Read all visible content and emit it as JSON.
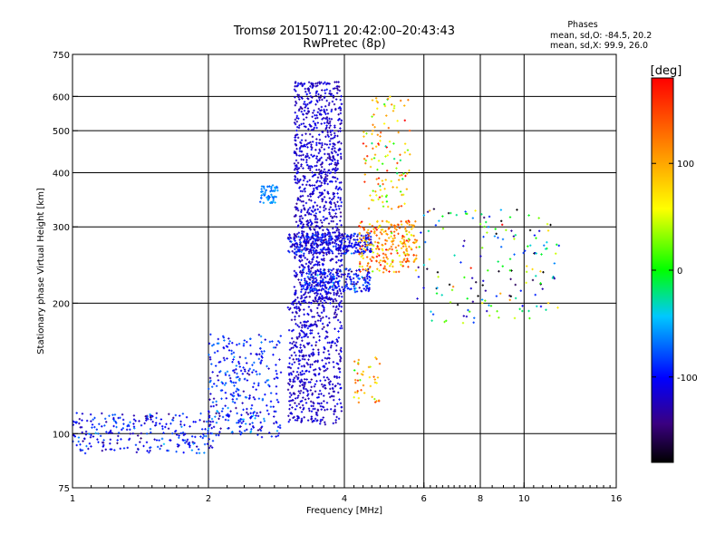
{
  "chart_data": {
    "type": "scatter",
    "title": "Tromsø 20150711 20:42:00–20:43:43",
    "subtitle": "RwPretec (8p)",
    "xlabel": "Frequency [MHz]",
    "ylabel": "Stationary phase Virtual Height [km]",
    "x_scale": "log",
    "y_scale": "log",
    "xlim": [
      1,
      16
    ],
    "ylim": [
      75,
      750
    ],
    "x_major_ticks": [
      1,
      2,
      4,
      8,
      16
    ],
    "x_minor_ticks": [
      6,
      10
    ],
    "x_tick_labels": [
      "1",
      "2",
      "4",
      "6",
      "8",
      "10",
      "16"
    ],
    "y_ticks": [
      75,
      100,
      200,
      300,
      400,
      500,
      600,
      750
    ],
    "y_tick_labels": [
      "75",
      "100",
      "200",
      "300",
      "400",
      "500",
      "600",
      "750"
    ],
    "grid": true,
    "stats": {
      "heading": "Phases",
      "o_line": "mean, sd,O: -84.5, 20.2",
      "x_line": "mean, sd,X:  99.9, 26.0"
    },
    "colorbar": {
      "label": "[deg]",
      "range": [
        -180,
        180
      ],
      "ticks": [
        100,
        0,
        -100
      ],
      "tick_labels": [
        "100",
        "0",
        "-100"
      ]
    },
    "clusters": [
      {
        "name": "low-frequency trace",
        "x_range": [
          1.0,
          2.05
        ],
        "y_range": [
          90,
          112
        ],
        "phase_mean": -100,
        "phase_sd": 20,
        "count": 260
      },
      {
        "name": "rising E-F trace",
        "x_range": [
          2.0,
          2.9
        ],
        "y_range": [
          98,
          170
        ],
        "phase_mean": -95,
        "phase_sd": 22,
        "count": 320
      },
      {
        "name": "spread F trace low",
        "x_range": [
          3.0,
          3.95
        ],
        "y_range": [
          105,
          205
        ],
        "phase_mean": -118,
        "phase_sd": 10,
        "count": 520
      },
      {
        "name": "spread F trace high",
        "x_range": [
          3.1,
          3.95
        ],
        "y_range": [
          200,
          650
        ],
        "phase_mean": -118,
        "phase_sd": 10,
        "count": 1050
      },
      {
        "name": "band 280",
        "x_range": [
          3.0,
          4.6
        ],
        "y_range": [
          260,
          290
        ],
        "phase_mean": -105,
        "phase_sd": 18,
        "count": 320
      },
      {
        "name": "band 220",
        "x_range": [
          3.2,
          4.6
        ],
        "y_range": [
          212,
          240
        ],
        "phase_mean": -100,
        "phase_sd": 22,
        "count": 240
      },
      {
        "name": "isolated patch 360",
        "x_range": [
          2.6,
          2.85
        ],
        "y_range": [
          340,
          375
        ],
        "phase_mean": -60,
        "phase_sd": 8,
        "count": 60
      },
      {
        "name": "x-mode 270",
        "x_range": [
          4.3,
          5.8
        ],
        "y_range": [
          235,
          310
        ],
        "phase_mean": 110,
        "phase_sd": 40,
        "count": 260
      },
      {
        "name": "x-mode upper",
        "x_range": [
          4.4,
          5.6
        ],
        "y_range": [
          330,
          600
        ],
        "phase_mean": 80,
        "phase_sd": 55,
        "count": 120
      },
      {
        "name": "x-mode 130",
        "x_range": [
          4.2,
          4.8
        ],
        "y_range": [
          118,
          150
        ],
        "phase_mean": 95,
        "phase_sd": 40,
        "count": 40
      },
      {
        "name": "scattered echoes",
        "x_range": [
          5.8,
          12.0
        ],
        "y_range": [
          180,
          330
        ],
        "phase_mean": -40,
        "phase_sd": 90,
        "count": 170
      }
    ]
  }
}
